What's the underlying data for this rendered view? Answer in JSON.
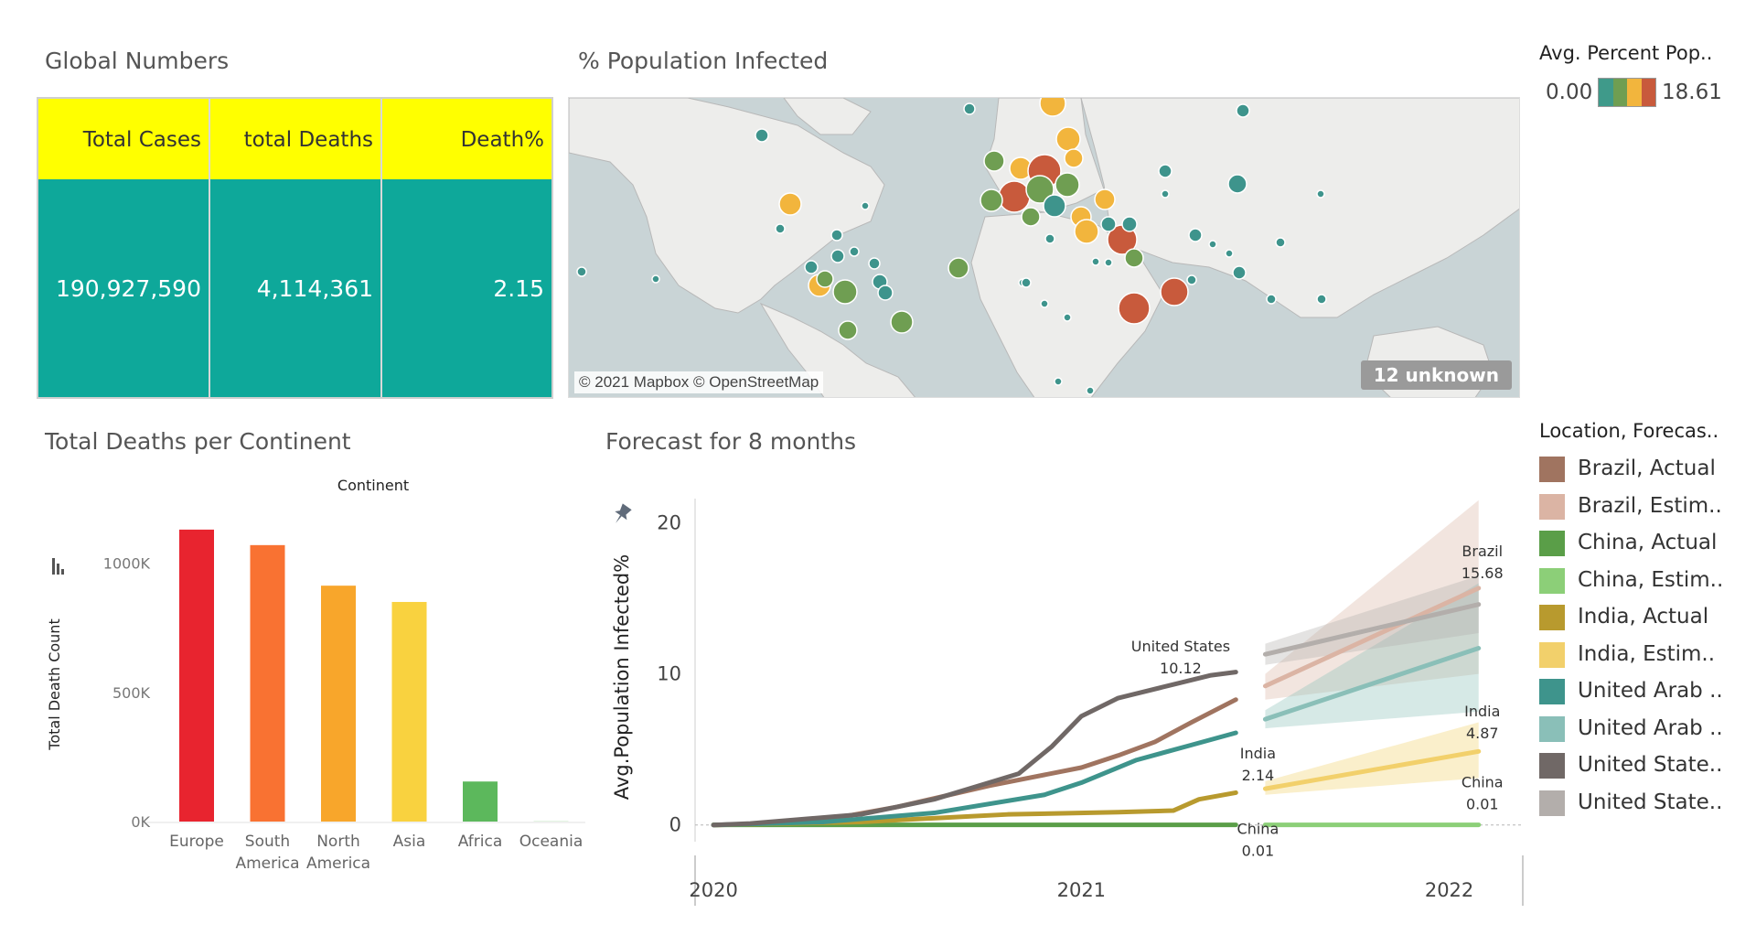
{
  "global_numbers": {
    "title": "Global Numbers",
    "headers": [
      "Total Cases",
      "total Deaths",
      "Death%"
    ],
    "values": [
      "190,927,590",
      "4,114,361",
      "2.15"
    ],
    "colors": {
      "header_bg": "#ffff00",
      "body_bg": "#0ea89a"
    }
  },
  "map_section": {
    "title": "% Population Infected",
    "credit": "© 2021 Mapbox © OpenStreetMap",
    "unknown_badge": "12 unknown"
  },
  "color_legend": {
    "title": "Avg. Percent Pop..",
    "min": "0.00",
    "max": "18.61",
    "colors": [
      "#3f9a8a",
      "#6f9e52",
      "#f2b53d",
      "#c85a3c"
    ]
  },
  "continent_section": {
    "title": "Total Deaths per Continent"
  },
  "forecast_section": {
    "title": "Forecast for 8 months"
  },
  "forecast_legend": {
    "title": "Location, Forecas..",
    "items": [
      {
        "label": "Brazil, Actual",
        "color": "#a07460"
      },
      {
        "label": "Brazil, Estim..",
        "color": "#dbb4a4"
      },
      {
        "label": "China, Actual",
        "color": "#5a9e48"
      },
      {
        "label": "China, Estim..",
        "color": "#8ccf78"
      },
      {
        "label": "India, Actual",
        "color": "#b89a2e"
      },
      {
        "label": "India, Estim..",
        "color": "#f2d06b"
      },
      {
        "label": "United Arab ..",
        "color": "#3e948c"
      },
      {
        "label": "United Arab ..",
        "color": "#8abfb8"
      },
      {
        "label": "United State..",
        "color": "#706866"
      },
      {
        "label": "United State..",
        "color": "#b3aeab"
      }
    ]
  },
  "chart_data": [
    {
      "type": "bar",
      "title": "",
      "legend_title": "Continent",
      "xlabel": "",
      "ylabel": "Total Death Count",
      "categories": [
        "Europe",
        "South America",
        "North America",
        "Asia",
        "Africa",
        "Oceania"
      ],
      "category_lines": [
        [
          "Europe"
        ],
        [
          "South",
          "America"
        ],
        [
          "North",
          "America"
        ],
        [
          "Asia"
        ],
        [
          "Africa"
        ],
        [
          "Oceania"
        ]
      ],
      "values": [
        1130000,
        1070000,
        913000,
        850000,
        155000,
        1000
      ],
      "colors": [
        "#e8242f",
        "#f97232",
        "#f8a62b",
        "#f9d23f",
        "#5cb85c",
        "#9ed99a"
      ],
      "yticks": [
        0,
        500000,
        1000000
      ],
      "ytick_labels": [
        "0K",
        "500K",
        "1000K"
      ],
      "ylim": [
        0,
        1250000
      ],
      "grid": false
    },
    {
      "type": "line",
      "title": "",
      "xlabel": "",
      "ylabel": "Avg.Population Infected%",
      "xlim": [
        2019.95,
        2022.2
      ],
      "ylim": [
        -0.5,
        21
      ],
      "yticks": [
        0,
        10,
        20
      ],
      "xticks": [
        2020,
        2021,
        2022
      ],
      "series": [
        {
          "name": "Brazil, Actual",
          "color": "#a07460",
          "x": [
            2020.0,
            2020.25,
            2020.5,
            2020.75,
            2021.0,
            2021.1,
            2021.2,
            2021.3,
            2021.42
          ],
          "y": [
            0,
            0.1,
            1.2,
            2.6,
            3.8,
            4.6,
            5.5,
            6.8,
            8.3
          ]
        },
        {
          "name": "Brazil, Estim..",
          "color": "#dbb4a4",
          "x": [
            2021.5,
            2022.08
          ],
          "y": [
            9.2,
            15.68
          ],
          "band_hi": [
            10.0,
            21.5
          ],
          "band_lo": [
            8.3,
            10.0
          ]
        },
        {
          "name": "China, Actual",
          "color": "#5a9e48",
          "x": [
            2020.0,
            2021.42
          ],
          "y": [
            0.01,
            0.01
          ]
        },
        {
          "name": "China, Estim..",
          "color": "#8ccf78",
          "x": [
            2021.5,
            2022.08
          ],
          "y": [
            0.01,
            0.01
          ]
        },
        {
          "name": "India, Actual",
          "color": "#b89a2e",
          "x": [
            2020.0,
            2020.4,
            2020.8,
            2021.1,
            2021.25,
            2021.32,
            2021.42
          ],
          "y": [
            0,
            0.2,
            0.7,
            0.85,
            0.95,
            1.7,
            2.14
          ]
        },
        {
          "name": "India, Estim..",
          "color": "#f2d06b",
          "x": [
            2021.5,
            2022.08
          ],
          "y": [
            2.4,
            4.87
          ],
          "band_hi": [
            2.9,
            6.8
          ],
          "band_lo": [
            2.0,
            3.1
          ]
        },
        {
          "name": "United Arab ..",
          "color": "#3e948c",
          "x": [
            2020.0,
            2020.3,
            2020.6,
            2020.9,
            2021.0,
            2021.15,
            2021.3,
            2021.42
          ],
          "y": [
            0,
            0.2,
            0.8,
            2.0,
            2.8,
            4.3,
            5.3,
            6.1
          ]
        },
        {
          "name": "United Arab ..",
          "color": "#8abfb8",
          "x": [
            2021.5,
            2022.08
          ],
          "y": [
            7.0,
            11.7
          ],
          "band_hi": [
            7.6,
            16.0
          ],
          "band_lo": [
            6.4,
            7.5
          ]
        },
        {
          "name": "United State..",
          "color": "#706866",
          "x": [
            2020.0,
            2020.1,
            2020.4,
            2020.6,
            2020.83,
            2020.92,
            2021.0,
            2021.1,
            2021.25,
            2021.35,
            2021.42
          ],
          "y": [
            0,
            0.1,
            0.7,
            1.7,
            3.4,
            5.2,
            7.2,
            8.4,
            9.3,
            9.9,
            10.12
          ]
        },
        {
          "name": "United State..",
          "color": "#b3aeab",
          "x": [
            2021.5,
            2022.08
          ],
          "y": [
            11.3,
            14.6
          ],
          "band_hi": [
            12.0,
            16.5
          ],
          "band_lo": [
            10.6,
            12.7
          ]
        }
      ],
      "annotations": [
        {
          "text": "United States",
          "value": "10.12",
          "x": 2021.27,
          "y": 11.5
        },
        {
          "text": "India",
          "value": "2.14",
          "x": 2021.48,
          "y": 4.4
        },
        {
          "text": "China",
          "value": "0.01",
          "x": 2021.48,
          "y": -0.6
        },
        {
          "text": "Brazil",
          "value": "15.68",
          "x": 2022.09,
          "y": 17.8
        },
        {
          "text": "India",
          "value": "4.87",
          "x": 2022.09,
          "y": 7.2
        },
        {
          "text": "China",
          "value": "0.01",
          "x": 2022.09,
          "y": 2.5
        }
      ]
    }
  ]
}
